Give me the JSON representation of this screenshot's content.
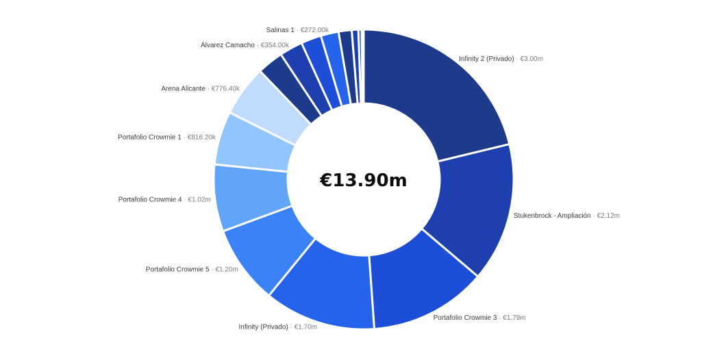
{
  "chart_data": {
    "type": "pie",
    "donut": true,
    "center_total": "€13.90m",
    "slices": [
      {
        "name": "Infinity 2 (Privado)",
        "value_label": "€3.00m",
        "value": 3.0,
        "color": "#1e3a8a",
        "labeled": true
      },
      {
        "name": "Stukenbrock - Ampliación",
        "value_label": "€2.12m",
        "value": 2.12,
        "color": "#1e40af",
        "labeled": true
      },
      {
        "name": "Portafolio Crowmie 3",
        "value_label": "€1.79m",
        "value": 1.79,
        "color": "#1d4ed8",
        "labeled": true
      },
      {
        "name": "Infinity (Privado)",
        "value_label": "€1.70m",
        "value": 1.7,
        "color": "#2563eb",
        "labeled": true
      },
      {
        "name": "Portafolio Crowmie 5",
        "value_label": "€1.20m",
        "value": 1.2,
        "color": "#3b82f6",
        "labeled": true
      },
      {
        "name": "Portafolio Crowmie 4",
        "value_label": "€1.02m",
        "value": 1.02,
        "color": "#60a5fa",
        "labeled": true
      },
      {
        "name": "Portafolio Crowmie 1",
        "value_label": "€816.20k",
        "value": 0.8162,
        "color": "#93c5fd",
        "labeled": true
      },
      {
        "name": "Arena Alicante",
        "value_label": "€776.40k",
        "value": 0.7764,
        "color": "#bfdbfe",
        "labeled": true
      },
      {
        "name": "",
        "value_label": "",
        "value": 0.4,
        "color": "#1e3a8a",
        "labeled": false
      },
      {
        "name": "Álvarez Camacho",
        "value_label": "€354.00k",
        "value": 0.354,
        "color": "#1e40af",
        "labeled": true
      },
      {
        "name": "",
        "value_label": "",
        "value": 0.31,
        "color": "#1d4ed8",
        "labeled": false
      },
      {
        "name": "Salinas 1",
        "value_label": "€272.00k",
        "value": 0.272,
        "color": "#2563eb",
        "labeled": true
      },
      {
        "name": "",
        "value_label": "",
        "value": 0.2,
        "color": "#1e3a8a",
        "labeled": false
      },
      {
        "name": "",
        "value_label": "",
        "value": 0.1,
        "color": "#1e40af",
        "labeled": false
      },
      {
        "name": "",
        "value_label": "",
        "value": 0.05,
        "color": "#1d4ed8",
        "labeled": false
      },
      {
        "name": "",
        "value_label": "",
        "value": 0.03,
        "color": "#2563eb",
        "labeled": false
      }
    ]
  }
}
